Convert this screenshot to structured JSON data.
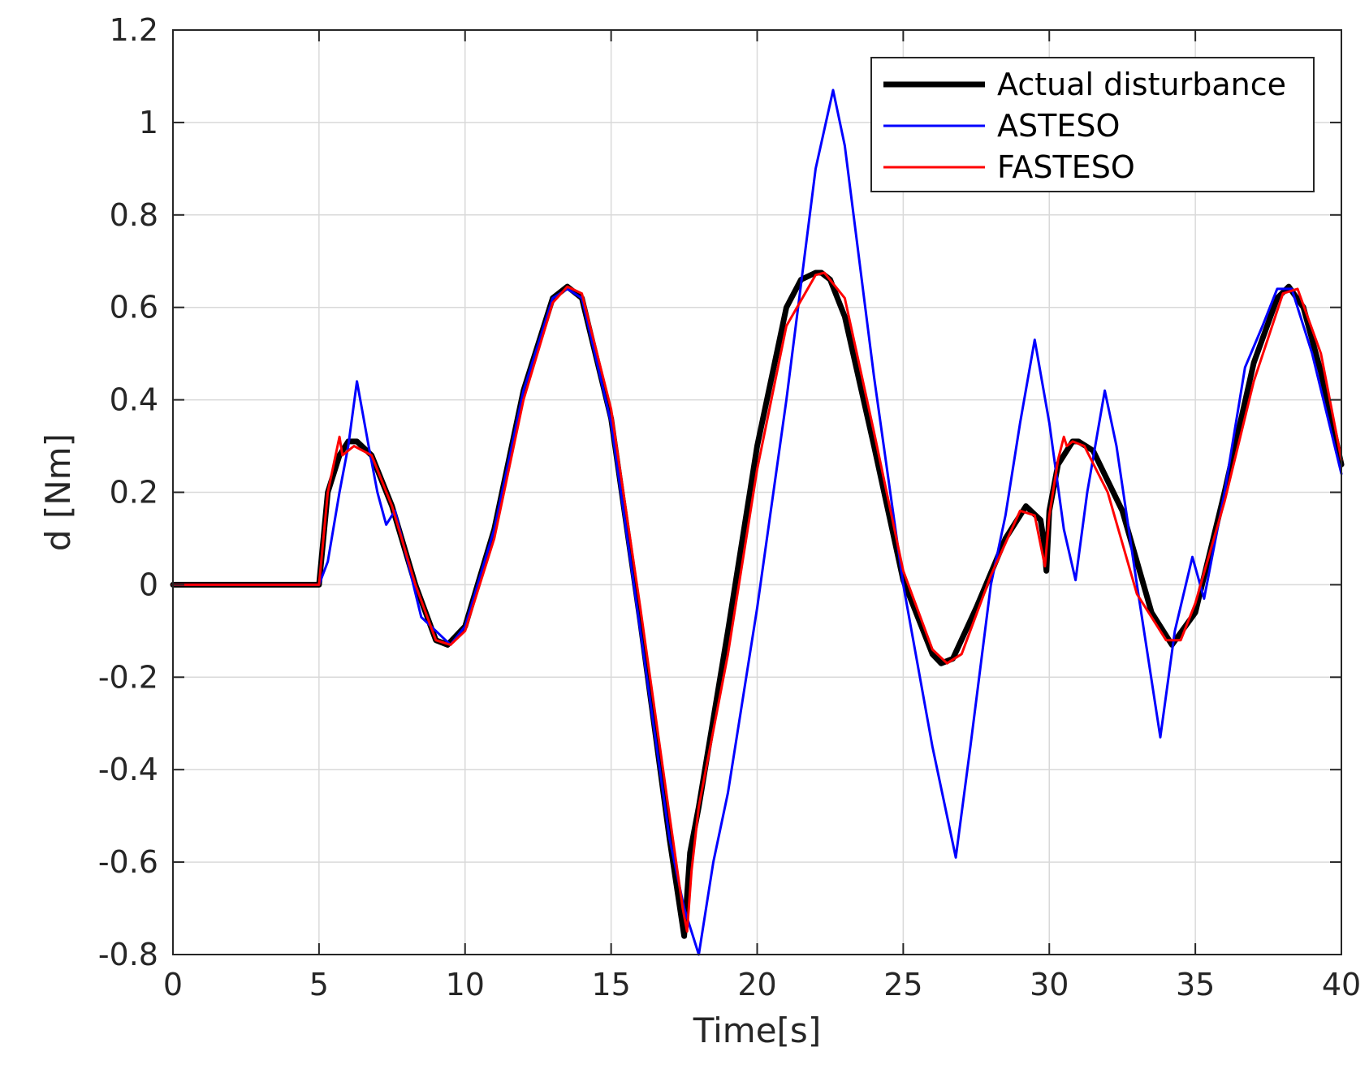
{
  "chart_data": {
    "type": "line",
    "title": "",
    "xlabel": "Time[s]",
    "ylabel": "d [Nm]",
    "xlim": [
      0,
      40
    ],
    "ylim": [
      -0.8,
      1.2
    ],
    "xticks": [
      0,
      5,
      10,
      15,
      20,
      25,
      30,
      35,
      40
    ],
    "yticks": [
      -0.8,
      -0.6,
      -0.4,
      -0.2,
      0,
      0.2,
      0.4,
      0.6,
      0.8,
      1,
      1.2
    ],
    "xtick_labels": [
      "0",
      "5",
      "10",
      "15",
      "20",
      "25",
      "30",
      "35",
      "40"
    ],
    "ytick_labels": [
      "-0.8",
      "-0.6",
      "-0.4",
      "-0.2",
      "0",
      "0.2",
      "0.4",
      "0.6",
      "0.8",
      "1",
      "1.2"
    ],
    "grid": true,
    "legend_position": "top-right",
    "series": [
      {
        "name": "Actual disturbance",
        "color": "#000000",
        "x": [
          0,
          4.95,
          5.0,
          5.3,
          5.7,
          6.0,
          6.3,
          6.8,
          7.5,
          8.3,
          9.0,
          9.4,
          10.0,
          11.0,
          12.0,
          13.0,
          13.5,
          14.0,
          15.0,
          16.0,
          17.0,
          17.5,
          17.7,
          18.0,
          19.0,
          20.0,
          21.0,
          21.5,
          22.0,
          22.2,
          22.5,
          23.0,
          24.0,
          25.0,
          26.0,
          26.3,
          26.7,
          27.5,
          28.5,
          29.2,
          29.7,
          29.8,
          29.9,
          30.0,
          30.3,
          30.8,
          31.0,
          31.5,
          32.5,
          33.5,
          34.2,
          35.0,
          36.0,
          37.0,
          37.8,
          38.2,
          38.7,
          39.3,
          40.0
        ],
        "y": [
          0,
          0,
          0.0,
          0.2,
          0.28,
          0.31,
          0.31,
          0.28,
          0.17,
          0.0,
          -0.12,
          -0.13,
          -0.09,
          0.12,
          0.42,
          0.62,
          0.645,
          0.62,
          0.36,
          -0.08,
          -0.55,
          -0.76,
          -0.58,
          -0.48,
          -0.1,
          0.3,
          0.6,
          0.66,
          0.675,
          0.675,
          0.66,
          0.58,
          0.3,
          0.01,
          -0.15,
          -0.17,
          -0.16,
          -0.05,
          0.1,
          0.17,
          0.14,
          0.1,
          0.03,
          0.16,
          0.26,
          0.31,
          0.31,
          0.29,
          0.16,
          -0.06,
          -0.13,
          -0.06,
          0.2,
          0.48,
          0.62,
          0.645,
          0.6,
          0.46,
          0.26
        ]
      },
      {
        "name": "ASTESO",
        "color": "#0000ff",
        "x": [
          0,
          5.0,
          5.3,
          5.7,
          6.0,
          6.3,
          6.7,
          7.0,
          7.3,
          7.6,
          8.0,
          8.5,
          9.0,
          9.5,
          10.0,
          11.0,
          12.0,
          13.0,
          13.5,
          14.0,
          15.0,
          16.0,
          17.0,
          17.5,
          18.0,
          18.5,
          19.0,
          20.0,
          21.0,
          22.0,
          22.6,
          23.0,
          24.0,
          25.0,
          26.0,
          26.8,
          27.3,
          28.0,
          28.5,
          29.0,
          29.5,
          30.0,
          30.5,
          30.9,
          31.3,
          31.9,
          32.3,
          33.0,
          33.8,
          34.3,
          34.9,
          35.3,
          36.0,
          36.7,
          37.3,
          37.8,
          38.3,
          39.0,
          40.0
        ],
        "y": [
          0,
          0,
          0.05,
          0.2,
          0.3,
          0.44,
          0.3,
          0.2,
          0.13,
          0.16,
          0.06,
          -0.07,
          -0.1,
          -0.13,
          -0.09,
          0.12,
          0.42,
          0.62,
          0.64,
          0.62,
          0.35,
          -0.1,
          -0.55,
          -0.7,
          -0.8,
          -0.6,
          -0.45,
          -0.05,
          0.4,
          0.9,
          1.07,
          0.95,
          0.45,
          0.0,
          -0.35,
          -0.59,
          -0.35,
          0.0,
          0.15,
          0.35,
          0.53,
          0.35,
          0.12,
          0.01,
          0.2,
          0.42,
          0.3,
          0.0,
          -0.33,
          -0.1,
          0.06,
          -0.03,
          0.2,
          0.47,
          0.56,
          0.64,
          0.64,
          0.5,
          0.24
        ]
      },
      {
        "name": "FASTESO",
        "color": "#ff0000",
        "x": [
          0,
          5.0,
          5.3,
          5.6,
          5.7,
          5.8,
          6.2,
          6.8,
          7.5,
          8.3,
          9.0,
          9.5,
          10.0,
          11.0,
          12.0,
          13.0,
          13.5,
          14.0,
          15.0,
          16.0,
          17.0,
          17.45,
          17.6,
          17.75,
          18.0,
          19.0,
          20.0,
          21.0,
          22.0,
          22.3,
          23.0,
          24.0,
          25.0,
          26.0,
          26.5,
          27.0,
          28.0,
          29.0,
          29.5,
          29.85,
          30.0,
          30.3,
          30.5,
          30.6,
          30.8,
          31.2,
          32.0,
          33.0,
          34.0,
          34.5,
          35.0,
          36.0,
          37.0,
          38.0,
          38.5,
          39.3,
          40.0
        ],
        "y": [
          0,
          0,
          0.2,
          0.29,
          0.32,
          0.28,
          0.3,
          0.28,
          0.17,
          0.0,
          -0.12,
          -0.13,
          -0.1,
          0.1,
          0.4,
          0.61,
          0.645,
          0.63,
          0.38,
          -0.05,
          -0.5,
          -0.7,
          -0.75,
          -0.62,
          -0.48,
          -0.15,
          0.25,
          0.56,
          0.67,
          0.675,
          0.62,
          0.33,
          0.03,
          -0.14,
          -0.17,
          -0.15,
          0.02,
          0.16,
          0.15,
          0.04,
          0.15,
          0.27,
          0.32,
          0.3,
          0.31,
          0.3,
          0.2,
          -0.02,
          -0.12,
          -0.12,
          -0.04,
          0.18,
          0.44,
          0.63,
          0.64,
          0.5,
          0.27
        ]
      }
    ]
  }
}
